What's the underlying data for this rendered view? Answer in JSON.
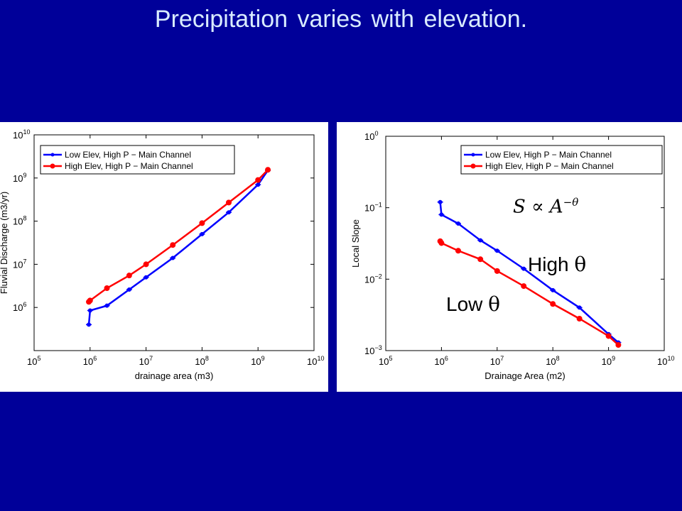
{
  "slide": {
    "title": "Precipitation varies with elevation."
  },
  "colors": {
    "background": "#000099",
    "title_text": "#d9ecff",
    "series_blue": "#0000ff",
    "series_red": "#ff0000"
  },
  "chart_data": [
    {
      "type": "scatter",
      "xscale": "log",
      "yscale": "log",
      "xlim": [
        100000,
        10000000000
      ],
      "ylim": [
        100000,
        10000000000
      ],
      "xlabel": "drainage area (m3)",
      "ylabel": "Fluvial Discharge (m3/yr)",
      "x_ticks": [
        100000,
        1000000,
        10000000,
        100000000,
        1000000000,
        10000000000
      ],
      "y_ticks": [
        1000000,
        10000000,
        100000000,
        1000000000,
        10000000000
      ],
      "tick_labels": [
        "10",
        "10",
        "10",
        "10",
        "10",
        "10"
      ],
      "x_tick_exponents": [
        "5",
        "6",
        "7",
        "8",
        "9",
        "10"
      ],
      "y_tick_exponents": [
        "6",
        "7",
        "8",
        "9",
        "10"
      ],
      "legend_placement": "top-left",
      "series": [
        {
          "name": "Low Elev, High P − Main Channel",
          "color": "#0000ff",
          "marker": "*",
          "points": [
            [
              950000,
              400000
            ],
            [
              1000000,
              850000
            ],
            [
              2000000,
              1100000
            ],
            [
              5000000,
              2600000
            ],
            [
              10000000,
              5000000
            ],
            [
              30000000,
              14000000
            ],
            [
              100000000,
              50000000
            ],
            [
              300000000,
              160000000
            ],
            [
              1000000000,
              700000000
            ],
            [
              1500000000,
              1500000000
            ]
          ]
        },
        {
          "name": "High Elev, High P − Main Channel",
          "color": "#ff0000",
          "marker": "o",
          "points": [
            [
              950000,
              1350000
            ],
            [
              1000000,
              1450000
            ],
            [
              2000000,
              2800000
            ],
            [
              5000000,
              5500000
            ],
            [
              10000000,
              10000000
            ],
            [
              30000000,
              28000000
            ],
            [
              100000000,
              90000000
            ],
            [
              300000000,
              270000000
            ],
            [
              1000000000,
              900000000
            ],
            [
              1500000000,
              1550000000
            ]
          ]
        }
      ]
    },
    {
      "type": "scatter",
      "xscale": "log",
      "yscale": "log",
      "xlim": [
        100000,
        10000000000
      ],
      "ylim": [
        0.001,
        1
      ],
      "xlabel": "Drainage Area (m2)",
      "ylabel": "Local Slope",
      "x_ticks": [
        100000,
        1000000,
        10000000,
        100000000,
        1000000000,
        10000000000
      ],
      "y_ticks": [
        0.001,
        0.01,
        0.1,
        1
      ],
      "tick_labels": [
        "10",
        "10",
        "10",
        "10",
        "10",
        "10"
      ],
      "x_tick_exponents": [
        "5",
        "6",
        "7",
        "8",
        "9",
        "10"
      ],
      "y_tick_exponents": [
        "−3",
        "−2",
        "−1",
        "0"
      ],
      "legend_placement": "top-right",
      "annotations": {
        "formula": "S ∝ A",
        "formula_exponent": "−θ",
        "high_label": "High",
        "low_label": "Low",
        "theta": "θ"
      },
      "series": [
        {
          "name": "Low Elev, High P − Main Channel",
          "color": "#0000ff",
          "marker": "*",
          "points": [
            [
              950000,
              0.12
            ],
            [
              1000000,
              0.08
            ],
            [
              2000000,
              0.06
            ],
            [
              5000000,
              0.035
            ],
            [
              10000000,
              0.025
            ],
            [
              30000000,
              0.014
            ],
            [
              100000000,
              0.007
            ],
            [
              300000000,
              0.004
            ],
            [
              1000000000,
              0.0017
            ],
            [
              1500000000,
              0.0013
            ]
          ]
        },
        {
          "name": "High Elev, High P − Main Channel",
          "color": "#ff0000",
          "marker": "o",
          "points": [
            [
              950000,
              0.034
            ],
            [
              1000000,
              0.032
            ],
            [
              2000000,
              0.025
            ],
            [
              5000000,
              0.019
            ],
            [
              10000000,
              0.013
            ],
            [
              30000000,
              0.008
            ],
            [
              100000000,
              0.0045
            ],
            [
              300000000,
              0.0028
            ],
            [
              1000000000,
              0.0016
            ],
            [
              1500000000,
              0.0012
            ]
          ]
        }
      ]
    }
  ]
}
